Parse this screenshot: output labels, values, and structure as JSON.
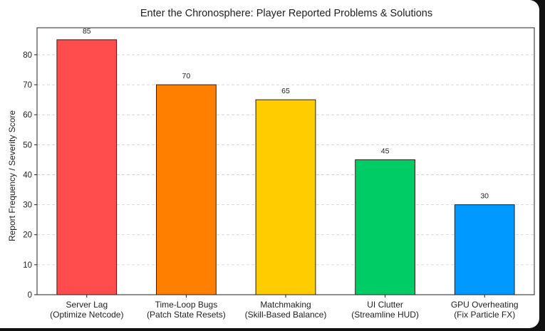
{
  "chart_data": {
    "type": "bar",
    "title": "Enter the Chronosphere: Player Reported Problems & Solutions",
    "xlabel": "",
    "ylabel": "Report Frequency / Severity Score",
    "ylim": [
      0,
      89
    ],
    "yticks": [
      0,
      10,
      20,
      30,
      40,
      50,
      60,
      70,
      80
    ],
    "grid": {
      "y": true,
      "style": "dashed"
    },
    "categories": [
      [
        "Server Lag",
        "(Optimize Netcode)"
      ],
      [
        "Time-Loop Bugs",
        "(Patch State Resets)"
      ],
      [
        "Matchmaking",
        "(Skill-Based Balance)"
      ],
      [
        "UI Clutter",
        "(Streamline HUD)"
      ],
      [
        "GPU Overheating",
        "(Fix Particle FX)"
      ]
    ],
    "values": [
      85,
      70,
      65,
      45,
      30
    ],
    "colors": [
      "#ff4d4d",
      "#ff8000",
      "#ffcc00",
      "#00cc66",
      "#0099ff"
    ],
    "data_labels": [
      "85",
      "70",
      "65",
      "45",
      "30"
    ]
  }
}
